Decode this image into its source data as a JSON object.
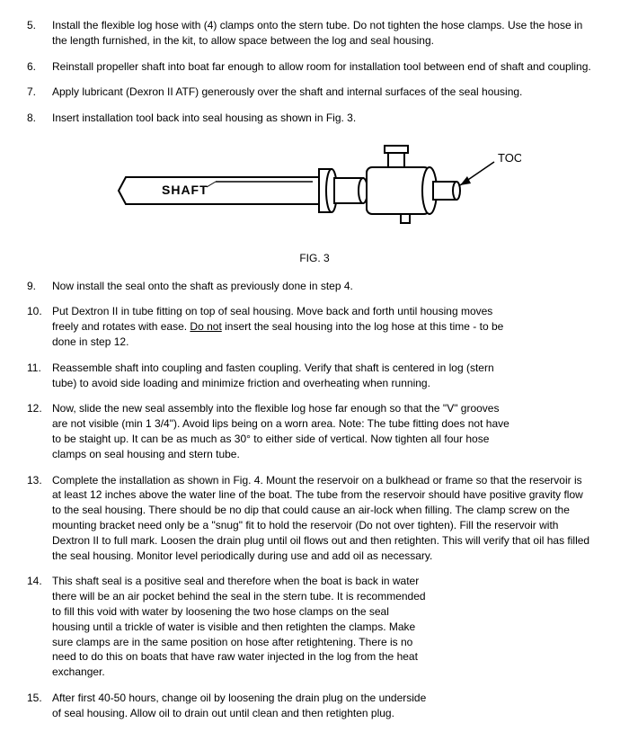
{
  "items": [
    {
      "n": "5.",
      "t": "Install the flexible log hose with (4) clamps onto the stern tube.  Do not tighten the hose clamps.  Use the hose in the length furnished, in the kit, to allow space between the log and seal housing.",
      "cls": ""
    },
    {
      "n": "6.",
      "t": "Reinstall propeller shaft into boat far enough to allow room for installation tool between end of shaft and coupling.",
      "cls": ""
    },
    {
      "n": "7.",
      "t": "Apply lubricant (Dexron II ATF) generously over the shaft and internal surfaces of the seal housing.",
      "cls": ""
    },
    {
      "n": "8.",
      "t": "Insert installation tool back into seal housing as shown in Fig. 3.",
      "cls": ""
    }
  ],
  "fig": {
    "caption": "FIG. 3",
    "shaft_label": "SHAFT",
    "tool_label": "TOOL"
  },
  "items2": [
    {
      "n": "9.",
      "t": "Now install the seal onto the shaft as previously done in step 4.",
      "cls": ""
    },
    {
      "n": "10.",
      "pre": "Put Dextron II in tube fitting on top of seal housing.  Move back and forth until housing moves freely and rotates with ease.  ",
      "u": "Do not",
      "post": "  insert the seal housing into the log hose at this time - to be done in step 12.",
      "cls": "narrow"
    },
    {
      "n": "11.",
      "t": "Reassemble shaft into coupling and fasten coupling.  Verify that shaft is centered in log (stern tube) to avoid side loading and minimize friction and overheating when running.",
      "cls": "narrow"
    },
    {
      "n": "12.",
      "t": "Now, slide the new seal assembly into the flexible log hose far enough so that the \"V\" grooves are not visible (min 1 3/4\").  Avoid lips being on a worn area.  Note:  The tube fitting does not have to be staight up.  It can be as much as 30° to either side of vertical.  Now tighten all four hose clamps on seal housing and stern tube.",
      "cls": "narrow"
    },
    {
      "n": "13.",
      "t": "Complete the installation as shown in Fig. 4.  Mount the reservoir on a bulkhead or frame so that the reservoir is at least 12 inches above the water line of the boat.  The tube from the reservoir should have positive gravity flow to the seal housing.  There should be no dip that could cause an air-lock when filling.  The clamp screw on the mounting bracket need only be a \"snug\" fit to hold the reservoir  (Do not over tighten).  Fill the reservoir with Dextron II to full mark.  Loosen the drain plug until oil flows out and then retighten.  This will verify that oil has filled the seal housing.  Monitor level periodically during use and add oil as necessary.",
      "cls": ""
    },
    {
      "n": "14.",
      "t": "This shaft seal is a positive seal and therefore when the boat is back in water there will be an air pocket behind the seal in the stern tube.  It is recommended to fill this void with water by loosening the two hose clamps on the seal housing until a trickle of water is visible and then retighten the clamps.  Make sure clamps are in the same position on hose after retightening.  There is no need to do this on boats that have raw water injected in the log from the heat exchanger.",
      "cls": "narrower"
    },
    {
      "n": "15.",
      "t": "After first 40-50 hours, change oil by loosening the drain plug on the underside of seal housing.  Allow oil to drain out until clean and then retighten plug.",
      "cls": "narrower"
    }
  ]
}
